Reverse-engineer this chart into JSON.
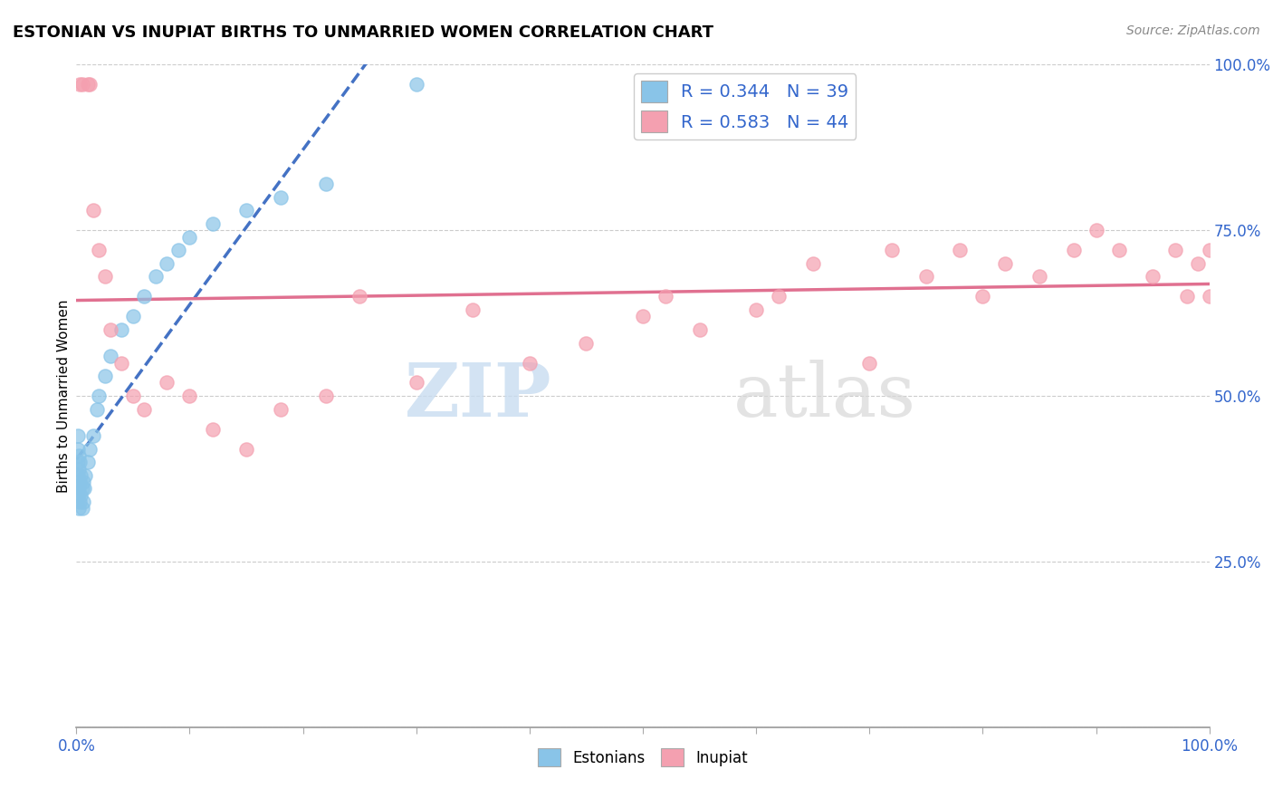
{
  "title": "ESTONIAN VS INUPIAT BIRTHS TO UNMARRIED WOMEN CORRELATION CHART",
  "source": "Source: ZipAtlas.com",
  "ylabel": "Births to Unmarried Women",
  "xlim": [
    0,
    1.0
  ],
  "ylim": [
    0,
    1.0
  ],
  "estonian_color": "#89C4E8",
  "inupiat_color": "#F4A0B0",
  "estonian_line_color": "#4472C4",
  "inupiat_line_color": "#E07090",
  "estonian_R": 0.344,
  "estonian_N": 39,
  "inupiat_R": 0.583,
  "inupiat_N": 44,
  "legend_color": "#3366CC",
  "estonian_x": [
    0.001,
    0.001,
    0.001,
    0.001,
    0.001,
    0.002,
    0.002,
    0.002,
    0.002,
    0.003,
    0.003,
    0.003,
    0.004,
    0.004,
    0.005,
    0.005,
    0.006,
    0.006,
    0.007,
    0.008,
    0.01,
    0.012,
    0.015,
    0.018,
    0.02,
    0.025,
    0.03,
    0.04,
    0.05,
    0.06,
    0.07,
    0.08,
    0.09,
    0.1,
    0.12,
    0.15,
    0.18,
    0.22,
    0.3
  ],
  "estonian_y": [
    0.35,
    0.38,
    0.4,
    0.42,
    0.44,
    0.33,
    0.36,
    0.39,
    0.41,
    0.34,
    0.37,
    0.4,
    0.35,
    0.38,
    0.33,
    0.36,
    0.34,
    0.37,
    0.36,
    0.38,
    0.4,
    0.42,
    0.44,
    0.48,
    0.5,
    0.53,
    0.56,
    0.6,
    0.62,
    0.65,
    0.68,
    0.7,
    0.72,
    0.74,
    0.76,
    0.78,
    0.8,
    0.82,
    0.97
  ],
  "inupiat_x": [
    0.003,
    0.005,
    0.01,
    0.012,
    0.015,
    0.02,
    0.025,
    0.03,
    0.04,
    0.05,
    0.06,
    0.08,
    0.1,
    0.12,
    0.15,
    0.18,
    0.22,
    0.25,
    0.3,
    0.35,
    0.4,
    0.45,
    0.5,
    0.52,
    0.55,
    0.6,
    0.62,
    0.65,
    0.7,
    0.72,
    0.75,
    0.78,
    0.8,
    0.82,
    0.85,
    0.88,
    0.9,
    0.92,
    0.95,
    0.97,
    0.98,
    0.99,
    1.0,
    1.0
  ],
  "inupiat_y": [
    0.97,
    0.97,
    0.97,
    0.97,
    0.78,
    0.72,
    0.68,
    0.6,
    0.55,
    0.5,
    0.48,
    0.52,
    0.5,
    0.45,
    0.42,
    0.48,
    0.5,
    0.65,
    0.52,
    0.63,
    0.55,
    0.58,
    0.62,
    0.65,
    0.6,
    0.63,
    0.65,
    0.7,
    0.55,
    0.72,
    0.68,
    0.72,
    0.65,
    0.7,
    0.68,
    0.72,
    0.75,
    0.72,
    0.68,
    0.72,
    0.65,
    0.7,
    0.65,
    0.72
  ],
  "estonian_trendline": [
    0.0,
    0.45,
    1.0,
    1.3
  ],
  "inupiat_trendline": [
    0.0,
    0.5,
    1.0,
    0.9
  ]
}
